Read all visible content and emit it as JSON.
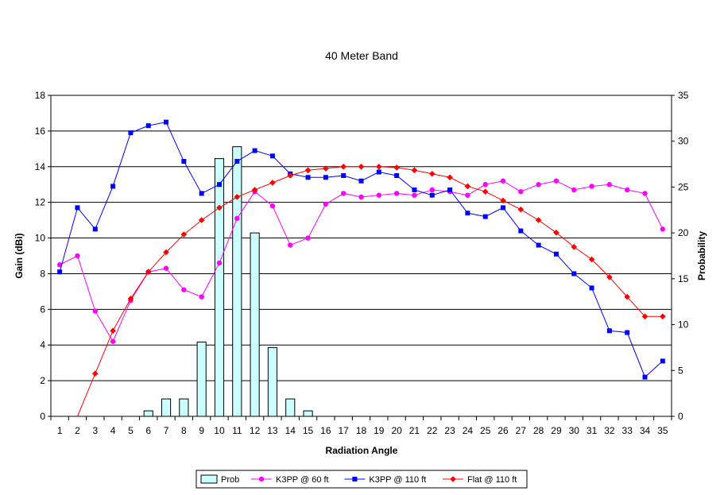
{
  "chart_data": {
    "type": "bar+line",
    "title": "40 Meter Band",
    "xlabel": "Radiation Angle",
    "ylabel_left": "Gain (dBi)",
    "ylabel_right": "Probability",
    "x": [
      1,
      2,
      3,
      4,
      5,
      6,
      7,
      8,
      9,
      10,
      11,
      12,
      13,
      14,
      15,
      16,
      17,
      18,
      19,
      20,
      21,
      22,
      23,
      24,
      25,
      26,
      27,
      28,
      29,
      30,
      31,
      32,
      33,
      34,
      35
    ],
    "y_left_range": [
      0,
      18
    ],
    "y_left_ticks": [
      0,
      2,
      4,
      6,
      8,
      10,
      12,
      14,
      16,
      18
    ],
    "y_right_range": [
      0,
      35
    ],
    "y_right_ticks": [
      0,
      5,
      10,
      15,
      20,
      25,
      30,
      35
    ],
    "grid": "horizontal",
    "legend_position": "bottom",
    "bars": {
      "name": "Prob",
      "axis": "right",
      "color": "#ccffff",
      "values": [
        0,
        0,
        0,
        0,
        0,
        0.6,
        1.9,
        1.9,
        8.1,
        28.1,
        29.4,
        20.0,
        7.5,
        1.9,
        0.6,
        0,
        0,
        0,
        0,
        0,
        0,
        0,
        0,
        0,
        0,
        0,
        0,
        0,
        0,
        0,
        0,
        0,
        0,
        0,
        0
      ]
    },
    "series": [
      {
        "name": "K3PP @ 60 ft",
        "axis": "left",
        "color": "#ff00ff",
        "marker": "circle",
        "values": [
          8.5,
          9.0,
          5.9,
          4.2,
          6.5,
          8.1,
          8.3,
          7.1,
          6.7,
          8.6,
          11.1,
          12.6,
          11.8,
          9.6,
          10.0,
          11.9,
          12.5,
          12.3,
          12.4,
          12.5,
          12.4,
          12.7,
          12.6,
          12.4,
          13.0,
          13.2,
          12.6,
          13.0,
          13.2,
          12.7,
          12.9,
          13.0,
          12.7,
          12.5,
          10.5
        ]
      },
      {
        "name": "K3PP @ 110 ft",
        "axis": "left",
        "color": "#0000ff",
        "marker": "square",
        "values": [
          8.1,
          11.7,
          10.5,
          12.9,
          15.9,
          16.3,
          16.5,
          14.3,
          12.5,
          13.0,
          14.3,
          14.9,
          14.6,
          13.6,
          13.4,
          13.4,
          13.5,
          13.2,
          13.7,
          13.5,
          12.7,
          12.4,
          12.7,
          11.4,
          11.2,
          11.7,
          10.4,
          9.6,
          9.1,
          8.0,
          7.2,
          4.8,
          4.7,
          2.2,
          3.1
        ]
      },
      {
        "name": "Flat @ 110 ft",
        "axis": "left",
        "color": "#ff0000",
        "marker": "diamond",
        "values": [
          null,
          0.0,
          2.4,
          4.8,
          6.6,
          8.1,
          9.2,
          10.2,
          11.0,
          11.7,
          12.3,
          12.7,
          13.1,
          13.5,
          13.8,
          13.9,
          14.0,
          14.0,
          14.0,
          13.95,
          13.8,
          13.6,
          13.4,
          12.9,
          12.6,
          12.1,
          11.6,
          11.0,
          10.3,
          9.5,
          8.8,
          7.8,
          6.7,
          5.6,
          5.6
        ]
      }
    ]
  }
}
